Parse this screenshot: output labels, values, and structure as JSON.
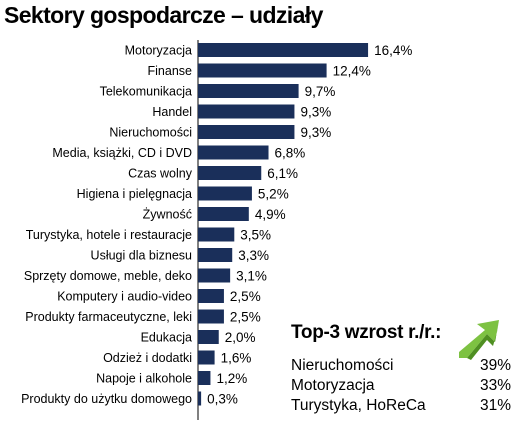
{
  "title": "Sektory gospodarcze – udziały",
  "chart_data": {
    "type": "bar",
    "orientation": "horizontal",
    "title": "Sektory gospodarcze – udziały",
    "categories": [
      "Motoryzacja",
      "Finanse",
      "Telekomunikacja",
      "Handel",
      "Nieruchomości",
      "Media, książki, CD i DVD",
      "Czas wolny",
      "Higiena i pielęgnacja",
      "Żywność",
      "Turystyka, hotele i restauracje",
      "Usługi dla biznesu",
      "Sprzęty domowe, meble, deko",
      "Komputery i audio-video",
      "Produkty farmaceutyczne, leki",
      "Edukacja",
      "Odzież i dodatki",
      "Napoje i alkohole",
      "Produkty do użytku domowego"
    ],
    "values": [
      16.4,
      12.4,
      9.7,
      9.3,
      9.3,
      6.8,
      6.1,
      5.2,
      4.9,
      3.5,
      3.3,
      3.1,
      2.5,
      2.5,
      2.0,
      1.6,
      1.2,
      0.3
    ],
    "value_labels": [
      "16,4%",
      "12,4%",
      "9,7%",
      "9,3%",
      "9,3%",
      "6,8%",
      "6,1%",
      "5,2%",
      "4,9%",
      "3,5%",
      "3,3%",
      "3,1%",
      "2,5%",
      "2,5%",
      "2,0%",
      "1,6%",
      "1,2%",
      "0,3%"
    ],
    "bar_color": "#1a2f5a",
    "grid": false,
    "legend": false
  },
  "top3": {
    "title": "Top-3 wzrost r./r.:",
    "arrow_icon": "green-arrow-icon",
    "arrow_color": "#7dc242",
    "items": [
      {
        "label": "Nieruchomości",
        "value": "39%"
      },
      {
        "label": "Motoryzacja",
        "value": "33%"
      },
      {
        "label": "Turystyka, HoReCa",
        "value": "31%"
      }
    ]
  }
}
